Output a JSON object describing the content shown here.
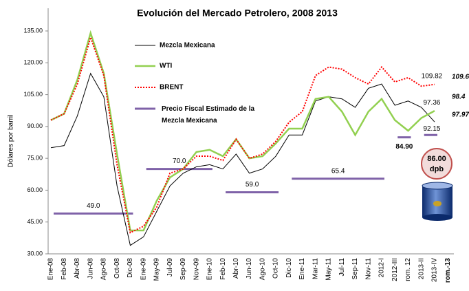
{
  "chart_data": {
    "type": "line",
    "title": "Evolución del Mercado Petrolero, 2008 2013",
    "y_label": "Dólares por barril",
    "categories": [
      "Ene-08",
      "Feb-08",
      "Abr-08",
      "Jun-08",
      "Ago-08",
      "Oct-08",
      "Dic-08",
      "Ene-09",
      "May-09",
      "Jul-09",
      "Sep-09",
      "Nov-09",
      "Ene-10",
      "Feb-10",
      "Abr-10",
      "Jun-10",
      "Ago-10",
      "Oct-10",
      "Dic-10",
      "Ene-11",
      "Mar-11",
      "May-11",
      "Jul-11",
      "Sep-11",
      "Nov-11",
      "2012-I",
      "2012-III",
      "rom. 12",
      "2013-II",
      "2013-IV",
      "rom.-13"
    ],
    "series": [
      {
        "name": "Mezcla Mexicana",
        "color": "#000000",
        "dash": false,
        "width": 1,
        "values": [
          80,
          81,
          95,
          115,
          104,
          62,
          34,
          38,
          50,
          62,
          68,
          71,
          72,
          70,
          77,
          68,
          70,
          76,
          86,
          86,
          102,
          104,
          103,
          99,
          108,
          110,
          100,
          102,
          99,
          92.15,
          null
        ]
      },
      {
        "name": "WTI",
        "color": "#92d050",
        "dash": false,
        "width": 2.5,
        "values": [
          93,
          96,
          112,
          134,
          115,
          77,
          41,
          41,
          55,
          66,
          70,
          78,
          79,
          76,
          84,
          75,
          76,
          82,
          89,
          89,
          103,
          104,
          97,
          86,
          97,
          103,
          93,
          88,
          94,
          97.36,
          null
        ]
      },
      {
        "name": "BRENT",
        "color": "#ff0000",
        "dash": true,
        "width": 2,
        "values": [
          93,
          96,
          110,
          132,
          114,
          72,
          40,
          43,
          52,
          68,
          70,
          76,
          76,
          74,
          84,
          75,
          77,
          83,
          92,
          97,
          114,
          118,
          117,
          113,
          110,
          118,
          111,
          113,
          109,
          109.82,
          null
        ]
      }
    ],
    "fiscal": {
      "name": "Precio Fiscal Estimado de la Mezcla Mexicana",
      "color": "#7f62a8",
      "values": [
        49.0,
        70.0,
        59.0,
        65.4,
        84.9,
        86.0
      ],
      "value_labels": [
        "49.0",
        "70.0",
        "59.0",
        "65.4",
        "84.90",
        "86.00"
      ],
      "from": [
        "Ene-08",
        "Ene-09",
        "Feb-10",
        "Dic-10",
        "2012-III",
        "2013-II"
      ],
      "to": [
        "Dic-08",
        "Ene-10",
        "Oct-10",
        "2012-I",
        "rom. 12",
        "2013-IV"
      ]
    },
    "badge_unit": "dpb",
    "side_labels": [
      "109.6",
      "98.4",
      "97.97"
    ],
    "ylim": [
      30,
      135
    ],
    "yticks": [
      {
        "value": 30,
        "label": "30.00"
      },
      {
        "value": 45,
        "label": "45.00"
      },
      {
        "value": 60,
        "label": "60.00"
      },
      {
        "value": 75,
        "label": "75.00"
      },
      {
        "value": 90,
        "label": "90.00"
      },
      {
        "value": 105,
        "label": "105.00"
      },
      {
        "value": 120,
        "label": "120.00"
      },
      {
        "value": 135,
        "label": "135.00"
      }
    ]
  }
}
